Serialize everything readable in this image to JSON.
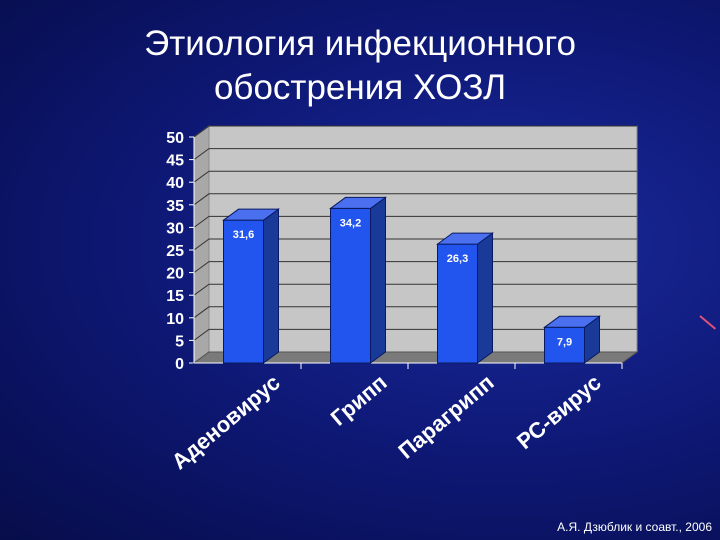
{
  "title": {
    "line1": "Этиология инфекционного",
    "line2": "обострения ХОЗЛ"
  },
  "footnote": "А.Я. Дзюблик и соавт., 2006",
  "chart_data": {
    "type": "bar",
    "categories": [
      "Аденовирус",
      "Грипп",
      "Парагрипп",
      "РС-вирус"
    ],
    "values": [
      31.6,
      34.2,
      26.3,
      7.9
    ],
    "value_labels": [
      "31,6",
      "34,2",
      "26,3",
      "7,9"
    ],
    "ylim": [
      0,
      50
    ],
    "yticks": [
      "0",
      "5",
      "10",
      "15",
      "20",
      "25",
      "30",
      "35",
      "40",
      "45",
      "50"
    ],
    "grid": true,
    "legend": "none",
    "title": "",
    "xlabel": "",
    "ylabel": ""
  },
  "colors": {
    "bar_front": "#2255ee",
    "bar_side": "#1a3a9a",
    "bar_top": "#4a70f0",
    "plot_wall": "#c6c6c6",
    "floor": "#7a7a7a"
  }
}
